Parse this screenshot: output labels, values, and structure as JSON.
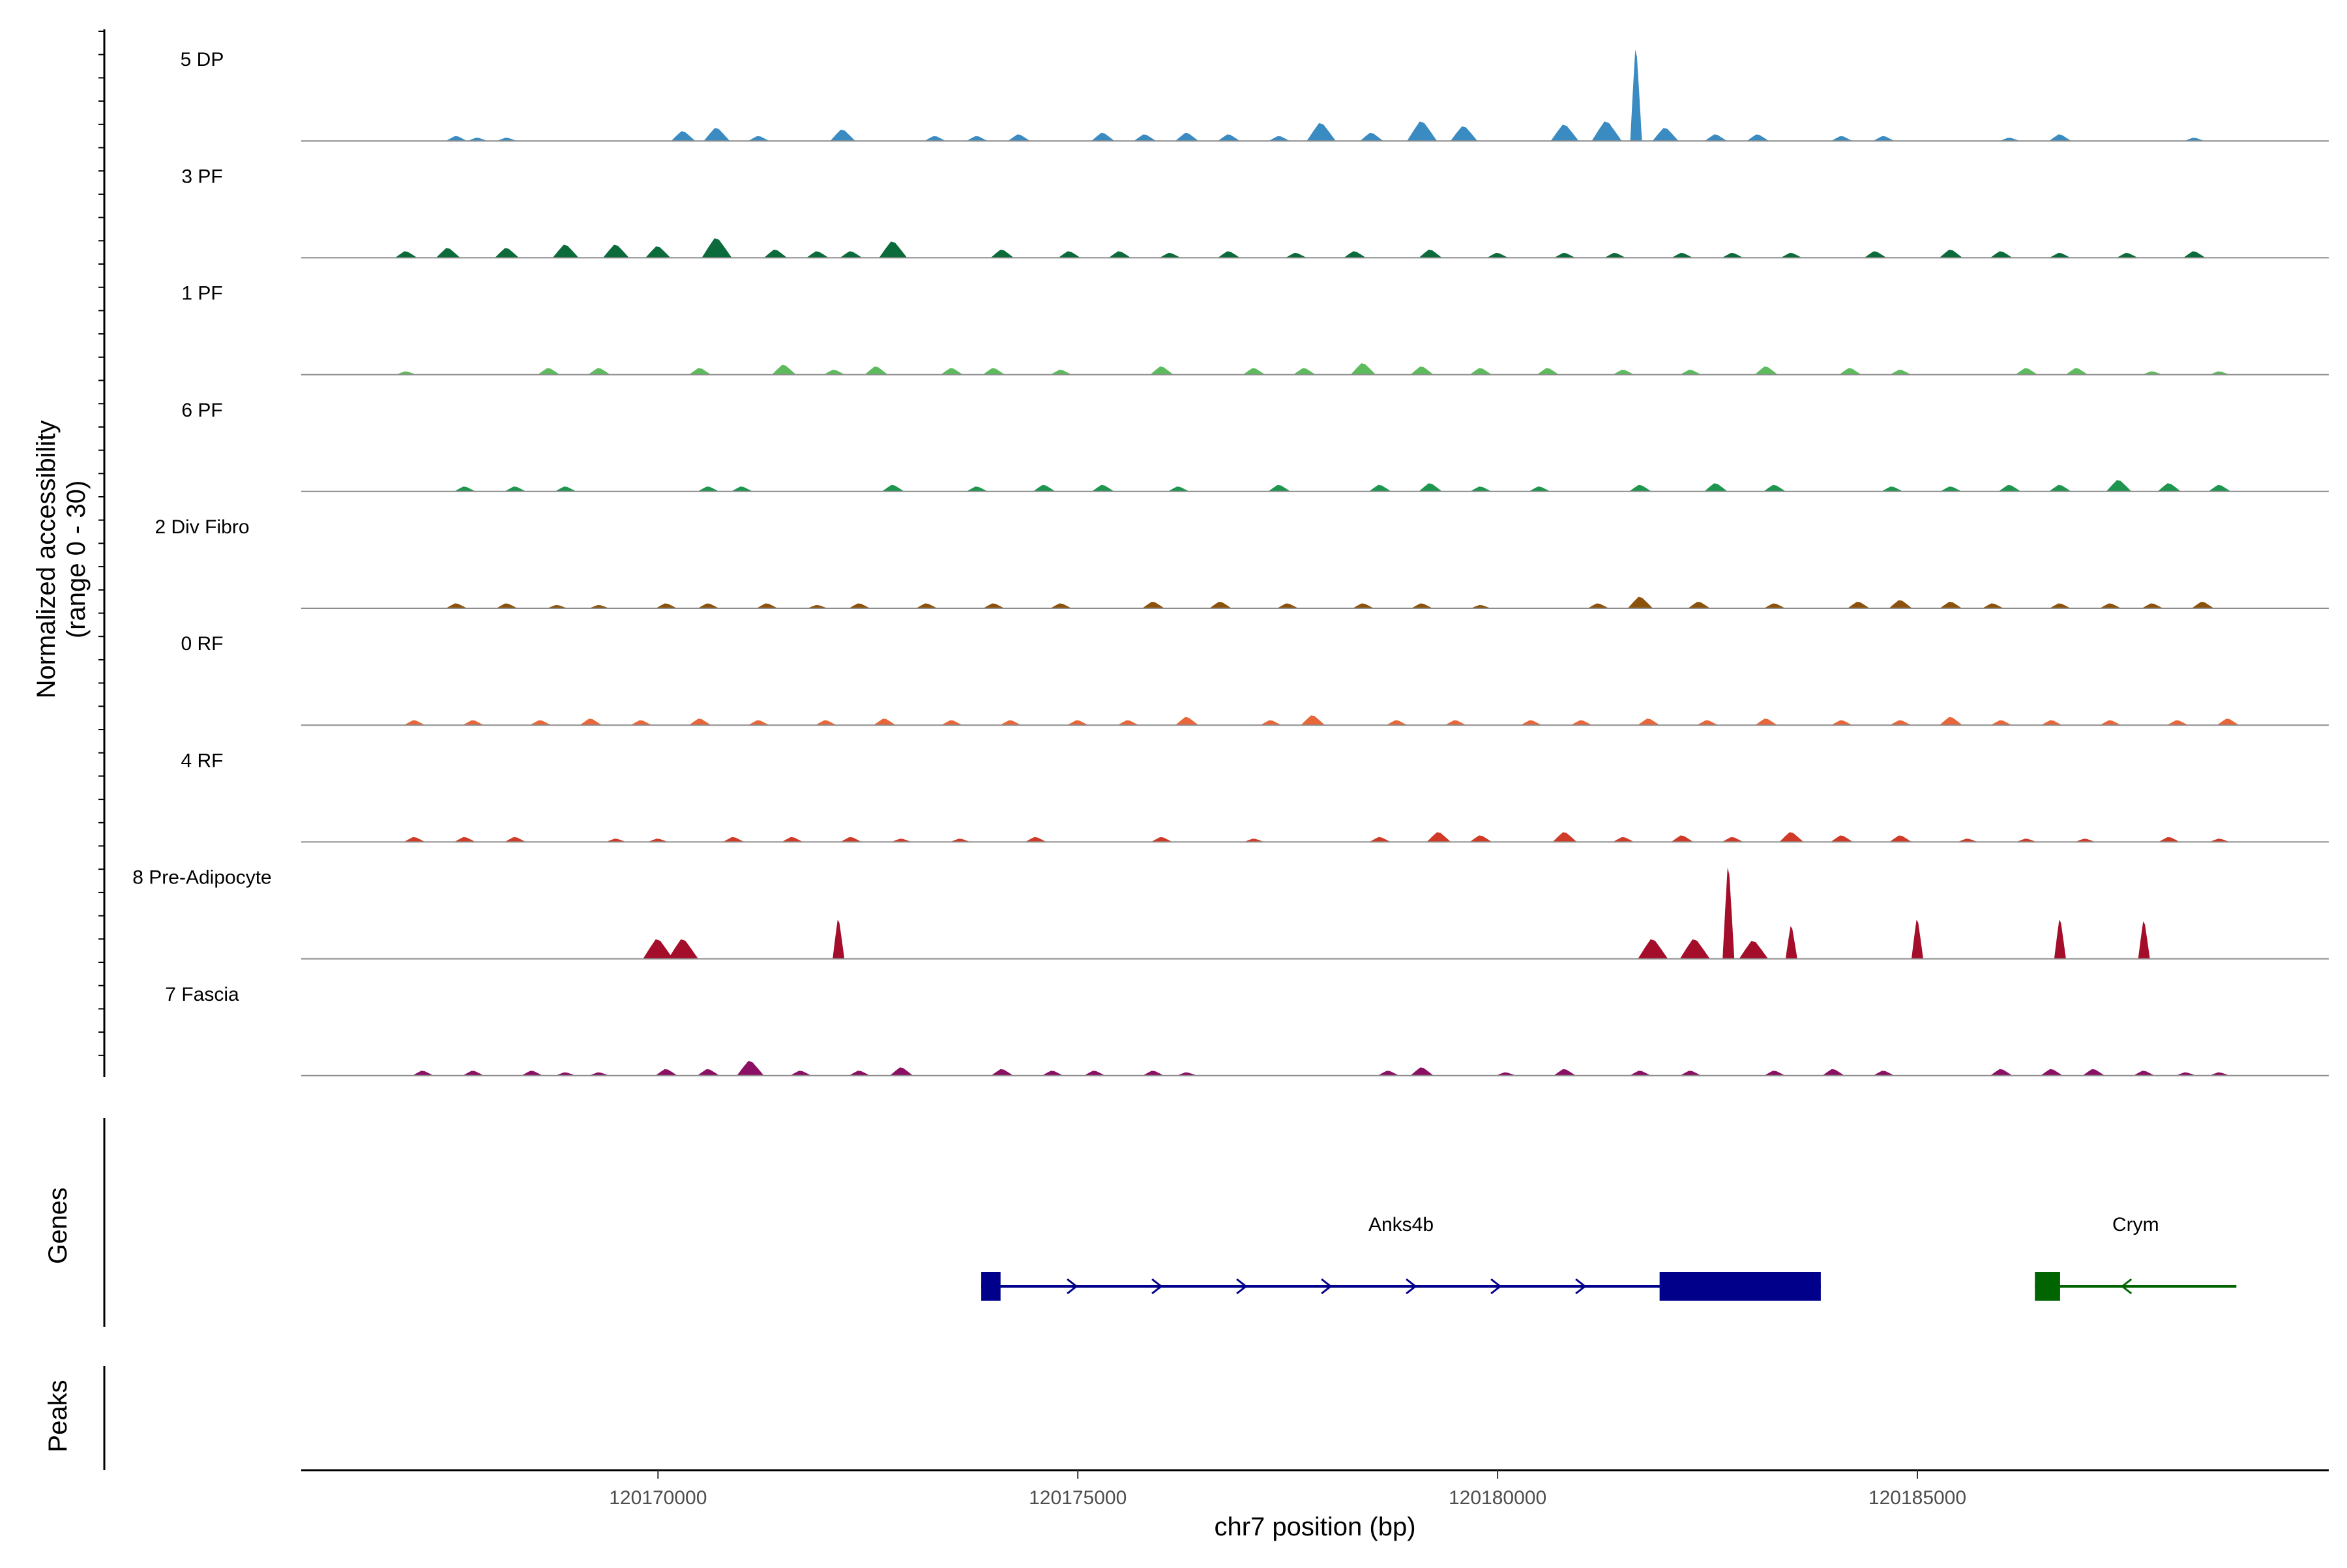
{
  "chart_data": {
    "type": "area",
    "y_axis_title_line1": "Normalized accessibility",
    "y_axis_title_line2": "(range 0 - 30)",
    "y_range": [
      0,
      30
    ],
    "x_axis_title": "chr7 position (bp)",
    "x_range": [
      120165750,
      120189900
    ],
    "x_ticks": [
      120170000,
      120175000,
      120180000,
      120185000
    ],
    "x_tick_labels": [
      "120170000",
      "120175000",
      "120180000",
      "120185000"
    ],
    "genes_panel_title": "Genes",
    "peaks_panel_title": "Peaks",
    "tracks": [
      {
        "label": "5 DP",
        "color": "#3a8bc2",
        "peaks": [
          [
            120167600,
            1.5
          ],
          [
            120167850,
            1
          ],
          [
            120168200,
            1
          ],
          [
            120170300,
            3
          ],
          [
            120170700,
            4
          ],
          [
            120171200,
            1.5
          ],
          [
            120172200,
            3.5
          ],
          [
            120173300,
            1.5
          ],
          [
            120173800,
            1.5
          ],
          [
            120174300,
            2
          ],
          [
            120175300,
            2.5
          ],
          [
            120175800,
            2
          ],
          [
            120176300,
            2.5
          ],
          [
            120176800,
            2
          ],
          [
            120177400,
            1.5
          ],
          [
            120177900,
            5.5
          ],
          [
            120178500,
            2.5
          ],
          [
            120179100,
            6
          ],
          [
            120179600,
            4.5
          ],
          [
            120180800,
            5
          ],
          [
            120181300,
            6
          ],
          [
            120181650,
            28
          ],
          [
            120182000,
            4
          ],
          [
            120182600,
            2
          ],
          [
            120183100,
            2
          ],
          [
            120184100,
            1.5
          ],
          [
            120184600,
            1.5
          ],
          [
            120186100,
            1
          ],
          [
            120186700,
            2
          ],
          [
            120188300,
            1
          ]
        ]
      },
      {
        "label": "3 PF",
        "color": "#0b6b3a",
        "peaks": [
          [
            120167000,
            2
          ],
          [
            120167500,
            3
          ],
          [
            120168200,
            3
          ],
          [
            120168900,
            4
          ],
          [
            120169500,
            4
          ],
          [
            120170000,
            3.5
          ],
          [
            120170700,
            6
          ],
          [
            120171400,
            2.5
          ],
          [
            120171900,
            2
          ],
          [
            120172300,
            2
          ],
          [
            120172800,
            5
          ],
          [
            120174100,
            2.5
          ],
          [
            120174900,
            2
          ],
          [
            120175500,
            2
          ],
          [
            120176100,
            1.5
          ],
          [
            120176800,
            2
          ],
          [
            120177600,
            1.5
          ],
          [
            120178300,
            2
          ],
          [
            120179200,
            2.5
          ],
          [
            120180000,
            1.5
          ],
          [
            120180800,
            1.5
          ],
          [
            120181400,
            1.5
          ],
          [
            120182200,
            1.5
          ],
          [
            120182800,
            1.5
          ],
          [
            120183500,
            1.5
          ],
          [
            120184500,
            2
          ],
          [
            120185400,
            2.5
          ],
          [
            120186000,
            2
          ],
          [
            120186700,
            1.5
          ],
          [
            120187500,
            1.5
          ],
          [
            120188300,
            2
          ]
        ]
      },
      {
        "label": "1 PF",
        "color": "#5dbb5d",
        "peaks": [
          [
            120167000,
            1
          ],
          [
            120168700,
            2
          ],
          [
            120169300,
            2
          ],
          [
            120170500,
            2
          ],
          [
            120171500,
            3
          ],
          [
            120172100,
            1.5
          ],
          [
            120172600,
            2.5
          ],
          [
            120173500,
            2
          ],
          [
            120174000,
            2
          ],
          [
            120174800,
            1.5
          ],
          [
            120176000,
            2.5
          ],
          [
            120177100,
            2
          ],
          [
            120177700,
            2
          ],
          [
            120178400,
            3.5
          ],
          [
            120179100,
            2.5
          ],
          [
            120179800,
            2
          ],
          [
            120180600,
            2
          ],
          [
            120181500,
            1.5
          ],
          [
            120182300,
            1.5
          ],
          [
            120183200,
            2.5
          ],
          [
            120184200,
            2
          ],
          [
            120184800,
            1.5
          ],
          [
            120186300,
            2
          ],
          [
            120186900,
            2
          ],
          [
            120187800,
            1
          ],
          [
            120188600,
            1
          ]
        ]
      },
      {
        "label": "6 PF",
        "color": "#1e9650",
        "peaks": [
          [
            120167700,
            1.5
          ],
          [
            120168300,
            1.5
          ],
          [
            120168900,
            1.5
          ],
          [
            120170600,
            1.5
          ],
          [
            120171000,
            1.5
          ],
          [
            120172800,
            2
          ],
          [
            120173800,
            1.5
          ],
          [
            120174600,
            2
          ],
          [
            120175300,
            2
          ],
          [
            120176200,
            1.5
          ],
          [
            120177400,
            2
          ],
          [
            120178600,
            2
          ],
          [
            120179200,
            2.5
          ],
          [
            120179800,
            1.5
          ],
          [
            120180500,
            1.5
          ],
          [
            120181700,
            2
          ],
          [
            120182600,
            2.5
          ],
          [
            120183300,
            2
          ],
          [
            120184700,
            1.5
          ],
          [
            120185400,
            1.5
          ],
          [
            120186100,
            2
          ],
          [
            120186700,
            2
          ],
          [
            120187400,
            3.5
          ],
          [
            120188000,
            2.5
          ],
          [
            120188600,
            2
          ]
        ]
      },
      {
        "label": "2 Div Fibro",
        "color": "#8c510a",
        "peaks": [
          [
            120167600,
            1.5
          ],
          [
            120168200,
            1.5
          ],
          [
            120168800,
            1
          ],
          [
            120169300,
            1
          ],
          [
            120170100,
            1.5
          ],
          [
            120170600,
            1.5
          ],
          [
            120171300,
            1.5
          ],
          [
            120171900,
            1
          ],
          [
            120172400,
            1.5
          ],
          [
            120173200,
            1.5
          ],
          [
            120174000,
            1.5
          ],
          [
            120174800,
            1.5
          ],
          [
            120175900,
            2
          ],
          [
            120176700,
            2
          ],
          [
            120177500,
            1.5
          ],
          [
            120178400,
            1.5
          ],
          [
            120179100,
            1.5
          ],
          [
            120179800,
            1
          ],
          [
            120181200,
            1.5
          ],
          [
            120181700,
            3.5
          ],
          [
            120182400,
            2
          ],
          [
            120183300,
            1.5
          ],
          [
            120184300,
            2
          ],
          [
            120184800,
            2.5
          ],
          [
            120185400,
            2
          ],
          [
            120185900,
            1.5
          ],
          [
            120186700,
            1.5
          ],
          [
            120187300,
            1.5
          ],
          [
            120187800,
            1.5
          ],
          [
            120188400,
            2
          ]
        ]
      },
      {
        "label": "0 RF",
        "color": "#e8673a",
        "peaks": [
          [
            120167100,
            1.5
          ],
          [
            120167800,
            1.5
          ],
          [
            120168600,
            1.5
          ],
          [
            120169200,
            2
          ],
          [
            120169800,
            1.5
          ],
          [
            120170500,
            2
          ],
          [
            120171200,
            1.5
          ],
          [
            120172000,
            1.5
          ],
          [
            120172700,
            2
          ],
          [
            120173500,
            1.5
          ],
          [
            120174200,
            1.5
          ],
          [
            120175000,
            1.5
          ],
          [
            120175600,
            1.5
          ],
          [
            120176300,
            2.5
          ],
          [
            120177300,
            1.5
          ],
          [
            120177800,
            3
          ],
          [
            120178800,
            1.5
          ],
          [
            120179500,
            1.5
          ],
          [
            120180400,
            1.5
          ],
          [
            120181000,
            1.5
          ],
          [
            120181800,
            2
          ],
          [
            120182500,
            1.5
          ],
          [
            120183200,
            2
          ],
          [
            120184100,
            1.5
          ],
          [
            120184800,
            1.5
          ],
          [
            120185400,
            2.5
          ],
          [
            120186000,
            1.5
          ],
          [
            120186600,
            1.5
          ],
          [
            120187300,
            1.5
          ],
          [
            120188100,
            1.5
          ],
          [
            120188700,
            2
          ]
        ]
      },
      {
        "label": "4 RF",
        "color": "#d03a27",
        "peaks": [
          [
            120167100,
            1.5
          ],
          [
            120167700,
            1.5
          ],
          [
            120168300,
            1.5
          ],
          [
            120169500,
            1
          ],
          [
            120170000,
            1
          ],
          [
            120170900,
            1.5
          ],
          [
            120171600,
            1.5
          ],
          [
            120172300,
            1.5
          ],
          [
            120172900,
            1
          ],
          [
            120173600,
            1
          ],
          [
            120174500,
            1.5
          ],
          [
            120176000,
            1.5
          ],
          [
            120177100,
            1
          ],
          [
            120178600,
            1.5
          ],
          [
            120179300,
            3
          ],
          [
            120179800,
            2
          ],
          [
            120180800,
            3
          ],
          [
            120181500,
            1.5
          ],
          [
            120182200,
            2
          ],
          [
            120182800,
            1.5
          ],
          [
            120183500,
            3
          ],
          [
            120184100,
            2
          ],
          [
            120184800,
            2
          ],
          [
            120185600,
            1
          ],
          [
            120186300,
            1
          ],
          [
            120187000,
            1
          ],
          [
            120188000,
            1.5
          ],
          [
            120188600,
            1
          ]
        ]
      },
      {
        "label": "8 Pre-Adipocyte",
        "color": "#a50e2b",
        "peaks": [
          [
            120170000,
            6
          ],
          [
            120170300,
            6
          ],
          [
            120172150,
            12
          ],
          [
            120181850,
            6
          ],
          [
            120182350,
            6
          ],
          [
            120182750,
            28
          ],
          [
            120183050,
            5.5
          ],
          [
            120183500,
            10
          ],
          [
            120185000,
            12
          ],
          [
            120186700,
            12
          ],
          [
            120187700,
            11.5
          ]
        ]
      },
      {
        "label": "7 Fascia",
        "color": "#8b1064",
        "peaks": [
          [
            120167200,
            1.5
          ],
          [
            120167800,
            1.5
          ],
          [
            120168500,
            1.5
          ],
          [
            120168900,
            1
          ],
          [
            120169300,
            1
          ],
          [
            120170100,
            2
          ],
          [
            120170600,
            2
          ],
          [
            120171100,
            4.5
          ],
          [
            120171700,
            1.5
          ],
          [
            120172400,
            1.5
          ],
          [
            120172900,
            2.5
          ],
          [
            120174100,
            2
          ],
          [
            120174700,
            1.5
          ],
          [
            120175200,
            1.5
          ],
          [
            120175900,
            1.5
          ],
          [
            120176300,
            1
          ],
          [
            120178700,
            1.5
          ],
          [
            120179100,
            2.5
          ],
          [
            120180100,
            1
          ],
          [
            120180800,
            2
          ],
          [
            120181700,
            1.5
          ],
          [
            120182300,
            1.5
          ],
          [
            120183300,
            1.5
          ],
          [
            120184000,
            2
          ],
          [
            120184600,
            1.5
          ],
          [
            120186000,
            2
          ],
          [
            120186600,
            2
          ],
          [
            120187100,
            2
          ],
          [
            120187700,
            1.5
          ],
          [
            120188200,
            1
          ],
          [
            120188600,
            1
          ]
        ]
      }
    ],
    "genes": [
      {
        "name": "Anks4b",
        "color": "#00008b",
        "strand": "+",
        "start": 120173850,
        "end": 120183850,
        "exons": [
          [
            120173850,
            120174080
          ],
          [
            120181930,
            120183850
          ]
        ]
      },
      {
        "name": "Crym",
        "color": "#006400",
        "strand": "-",
        "start": 120186400,
        "end": 120188800,
        "exons": [
          [
            120186400,
            120186700
          ]
        ]
      }
    ],
    "peaks_panel_items": []
  }
}
